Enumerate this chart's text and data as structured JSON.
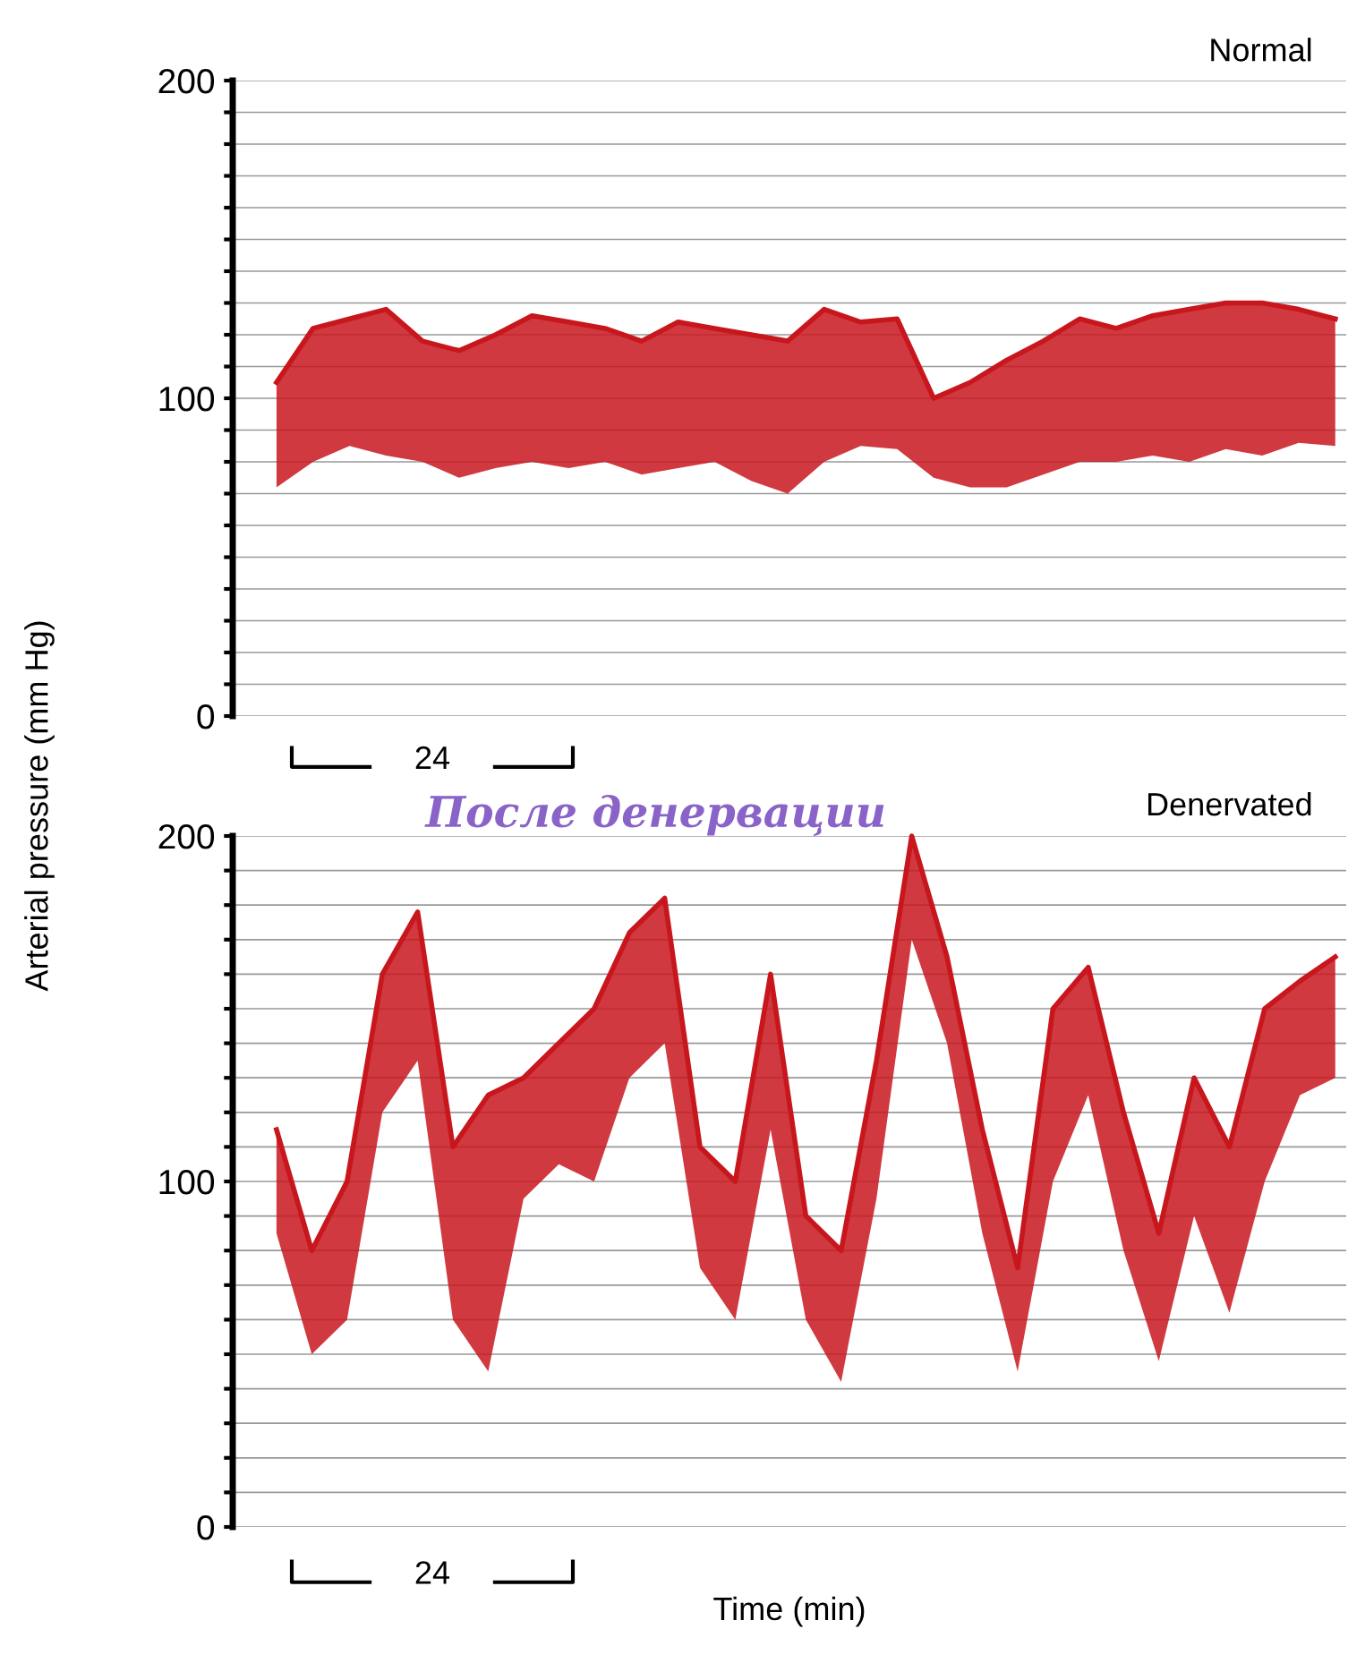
{
  "chart_data": [
    {
      "type": "line",
      "title": "Normal",
      "ylabel": "Arterial pressure (mm Hg)",
      "annotations": [
        "24"
      ],
      "categories": [
        null,
        null,
        null,
        null,
        null,
        null,
        null,
        null,
        null,
        null,
        null,
        null,
        null,
        null,
        null,
        null,
        null,
        null,
        null,
        null,
        null,
        null,
        null,
        null,
        null,
        null,
        null,
        null,
        null,
        null
      ],
      "series": [
        {
          "color": "#c8161d",
          "lower": [
            72,
            80,
            85,
            82,
            80,
            75,
            78,
            80,
            78,
            80,
            76,
            78,
            80,
            74,
            70,
            80,
            85,
            84,
            75,
            72,
            72,
            76,
            80,
            80,
            82,
            80,
            84,
            82,
            86,
            85
          ],
          "upper": [
            105,
            122,
            125,
            128,
            118,
            115,
            120,
            126,
            124,
            122,
            118,
            124,
            122,
            120,
            118,
            128,
            124,
            125,
            100,
            105,
            112,
            118,
            125,
            122,
            126,
            128,
            130,
            130,
            128,
            125
          ],
          "values": [
            105,
            122,
            125,
            128,
            118,
            115,
            120,
            126,
            124,
            122,
            118,
            124,
            122,
            120,
            118,
            128,
            124,
            125,
            100,
            105,
            112,
            118,
            125,
            122,
            126,
            128,
            130,
            130,
            128,
            125
          ]
        }
      ],
      "ylim": [
        0,
        200
      ],
      "yticks": [
        0,
        {
          "value": 10,
          "label": null
        },
        {
          "value": 20,
          "label": null
        },
        {
          "value": 30,
          "label": null
        },
        {
          "value": 40,
          "label": null
        },
        {
          "value": 50,
          "label": null
        },
        {
          "value": 60,
          "label": null
        },
        {
          "value": 70,
          "label": null
        },
        {
          "value": 80,
          "label": null
        },
        {
          "value": 90,
          "label": null
        },
        100,
        {
          "value": 110,
          "label": null
        },
        {
          "value": 120,
          "label": null
        },
        {
          "value": 130,
          "label": null
        },
        {
          "value": 140,
          "label": null
        },
        {
          "value": 150,
          "label": null
        },
        {
          "value": 160,
          "label": null
        },
        {
          "value": 170,
          "label": null
        },
        {
          "value": 180,
          "label": null
        },
        {
          "value": 190,
          "label": null
        },
        200
      ],
      "grid": "y",
      "tick_labels": "y"
    },
    {
      "type": "line",
      "title": "Denervated",
      "subtitle": "После денервации",
      "xlabel": "Time (min)",
      "annotations": [
        "24"
      ],
      "categories": [
        null,
        null,
        null,
        null,
        null,
        null,
        null,
        null,
        null,
        null,
        null,
        null,
        null,
        null,
        null,
        null,
        null,
        null,
        null,
        null,
        null,
        null,
        null,
        null,
        null,
        null,
        null,
        null,
        null,
        null,
        null
      ],
      "series": [
        {
          "color": "#c8161d",
          "lower": [
            85,
            50,
            60,
            120,
            135,
            60,
            45,
            95,
            105,
            100,
            130,
            140,
            75,
            60,
            115,
            60,
            42,
            95,
            170,
            140,
            85,
            45,
            100,
            125,
            80,
            48,
            90,
            62,
            100,
            125,
            130
          ],
          "upper": [
            115,
            80,
            100,
            160,
            178,
            110,
            125,
            130,
            140,
            150,
            172,
            182,
            110,
            100,
            160,
            90,
            80,
            135,
            200,
            165,
            115,
            75,
            150,
            162,
            120,
            85,
            130,
            110,
            150,
            158,
            165
          ],
          "values": [
            115,
            80,
            100,
            160,
            178,
            110,
            125,
            130,
            140,
            150,
            172,
            182,
            110,
            100,
            160,
            90,
            80,
            135,
            200,
            165,
            115,
            75,
            150,
            162,
            120,
            85,
            130,
            110,
            150,
            158,
            165
          ]
        }
      ],
      "ylim": [
        0,
        200
      ],
      "yticks": [
        0,
        {
          "value": 10,
          "label": null
        },
        {
          "value": 20,
          "label": null
        },
        {
          "value": 30,
          "label": null
        },
        {
          "value": 40,
          "label": null
        },
        {
          "value": 50,
          "label": null
        },
        {
          "value": 60,
          "label": null
        },
        {
          "value": 70,
          "label": null
        },
        {
          "value": 80,
          "label": null
        },
        {
          "value": 90,
          "label": null
        },
        100,
        {
          "value": 110,
          "label": null
        },
        {
          "value": 120,
          "label": null
        },
        {
          "value": 130,
          "label": null
        },
        {
          "value": 140,
          "label": null
        },
        {
          "value": 150,
          "label": null
        },
        {
          "value": 160,
          "label": null
        },
        {
          "value": 170,
          "label": null
        },
        {
          "value": 180,
          "label": null
        },
        {
          "value": 190,
          "label": null
        },
        200
      ],
      "grid": "y",
      "tick_labels": "y"
    }
  ]
}
